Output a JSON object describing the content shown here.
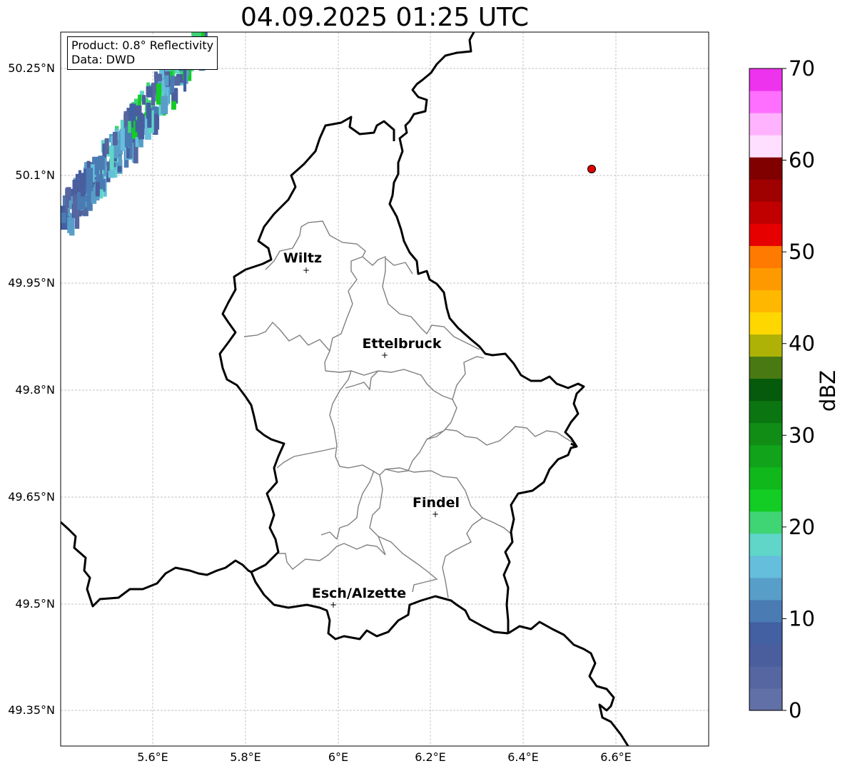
{
  "title": "04.09.2025 01:25 UTC",
  "info": {
    "product": "Product: 0.8° Reflectivity",
    "data": "Data: DWD"
  },
  "lat_ticks": [
    "50.25°N",
    "50.1°N",
    "49.95°N",
    "49.8°N",
    "49.65°N",
    "49.5°N",
    "49.35°N"
  ],
  "lon_ticks": [
    "5.6°E",
    "5.8°E",
    "6°E",
    "6.2°E",
    "6.4°E",
    "6.6°E"
  ],
  "cities": [
    {
      "name": "Wiltz"
    },
    {
      "name": "Ettelbruck"
    },
    {
      "name": "Findel"
    },
    {
      "name": "Esch/Alzette"
    }
  ],
  "colorbar": {
    "label": "dBZ",
    "ticks": [
      "0",
      "10",
      "20",
      "30",
      "40",
      "50",
      "60",
      "70"
    ],
    "colors": [
      "#6170a6",
      "#5566a0",
      "#4a5e9e",
      "#4260a2",
      "#4a7bb3",
      "#579ec8",
      "#65bedc",
      "#5fd6c8",
      "#3fd474",
      "#13cc24",
      "#10b81c",
      "#11a31a",
      "#118d16",
      "#0b7611",
      "#055a0c",
      "#497912",
      "#aeb206",
      "#ffd700",
      "#ffb700",
      "#ff9900",
      "#ff7a00",
      "#e60000",
      "#c00000",
      "#9f0000",
      "#800000",
      "#ffdfff",
      "#ffb3ff",
      "#ff6fff",
      "#ee33ee"
    ]
  },
  "marker": {
    "color": "#e00000"
  }
}
